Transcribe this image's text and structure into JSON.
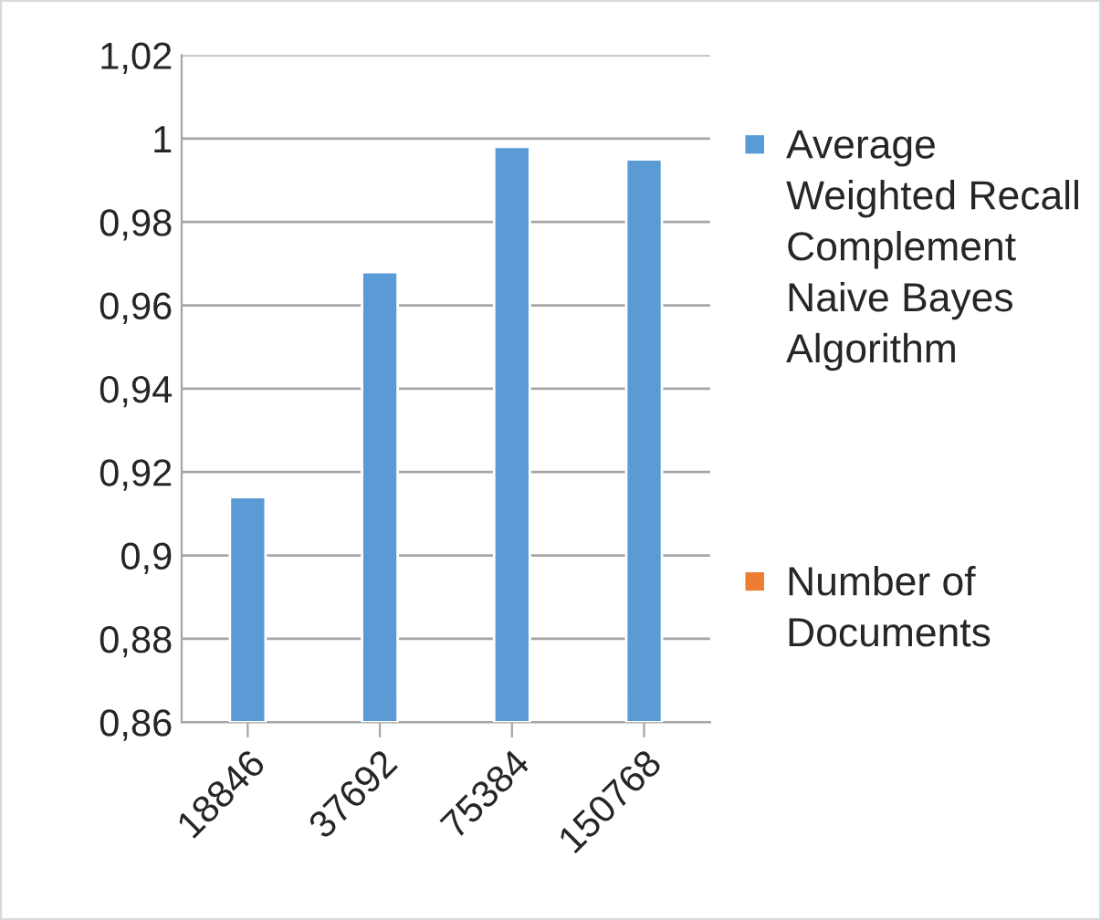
{
  "chart_data": {
    "type": "bar",
    "categories": [
      "18846",
      "37692",
      "75384",
      "150768"
    ],
    "series": [
      {
        "name": "Average Weighted Recall Complement Naive Bayes Algorithm",
        "color": "#5b9bd5",
        "values": [
          0.914,
          0.968,
          0.998,
          0.995
        ]
      },
      {
        "name": "Number of Documents",
        "color": "#ed7d31",
        "values": [
          null,
          null,
          null,
          null
        ]
      }
    ],
    "ylim": [
      0.86,
      1.02
    ],
    "yticks": [
      {
        "value": 0.86,
        "label": "0,86"
      },
      {
        "value": 0.88,
        "label": "0,88"
      },
      {
        "value": 0.9,
        "label": "0,9"
      },
      {
        "value": 0.92,
        "label": "0,92"
      },
      {
        "value": 0.94,
        "label": "0,94"
      },
      {
        "value": 0.96,
        "label": "0,96"
      },
      {
        "value": 0.98,
        "label": "0,98"
      },
      {
        "value": 1.0,
        "label": "1"
      },
      {
        "value": 1.02,
        "label": "1,02"
      }
    ],
    "grid": "y",
    "legend": "right"
  }
}
